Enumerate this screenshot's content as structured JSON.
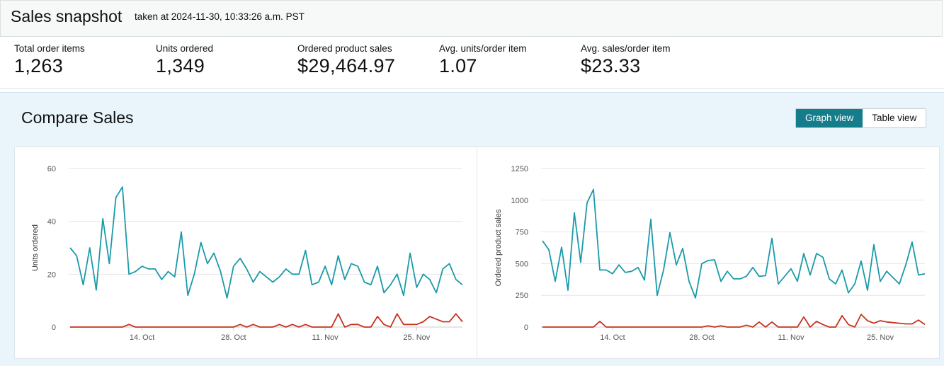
{
  "snapshot": {
    "title": "Sales snapshot",
    "timestamp": "taken at 2024-11-30, 10:33:26 a.m. PST"
  },
  "metrics": [
    {
      "label": "Total order items",
      "value": "1,263"
    },
    {
      "label": "Units ordered",
      "value": "1,349"
    },
    {
      "label": "Ordered product sales",
      "value": "$29,464.97"
    },
    {
      "label": "Avg. units/order item",
      "value": "1.07"
    },
    {
      "label": "Avg. sales/order item",
      "value": "$23.33"
    }
  ],
  "compare": {
    "title": "Compare Sales",
    "graph_view_label": "Graph view",
    "table_view_label": "Table view"
  },
  "colors": {
    "accent": "#147c8a",
    "series_current": "#1b9aaa",
    "series_compare": "#c8321e",
    "grid": "#e6e6e6"
  },
  "chart_data": [
    {
      "type": "line",
      "ylabel": "Units ordered",
      "ylim": [
        0,
        60
      ],
      "yticks": [
        "0",
        "20",
        "40",
        "60"
      ],
      "xticks": [
        {
          "label": "14. Oct",
          "index": 11
        },
        {
          "label": "28. Oct",
          "index": 25
        },
        {
          "label": "11. Nov",
          "index": 39
        },
        {
          "label": "25. Nov",
          "index": 53
        }
      ],
      "grid": true,
      "series": [
        {
          "values": [
            30,
            27,
            16,
            30,
            14,
            41,
            24,
            49,
            53,
            20,
            21,
            23,
            22,
            22,
            18,
            21,
            19,
            36,
            12,
            20,
            32,
            24,
            28,
            21,
            11,
            23,
            26,
            22,
            17,
            21,
            19,
            17,
            19,
            22,
            20,
            20,
            29,
            16,
            17,
            23,
            16,
            27,
            18,
            24,
            23,
            17,
            16,
            23,
            13,
            16,
            20,
            12,
            28,
            15,
            20,
            18,
            13,
            22,
            24,
            18,
            16
          ],
          "color": "#1b9aaa"
        },
        {
          "values": [
            0,
            0,
            0,
            0,
            0,
            0,
            0,
            0,
            0,
            1,
            0,
            0,
            0,
            0,
            0,
            0,
            0,
            0,
            0,
            0,
            0,
            0,
            0,
            0,
            0,
            0,
            1,
            0,
            1,
            0,
            0,
            0,
            1,
            0,
            1,
            0,
            1,
            0,
            0,
            0,
            0,
            5,
            0,
            1,
            1,
            0,
            0,
            4,
            1,
            0,
            5,
            1,
            1,
            1,
            2,
            4,
            3,
            2,
            2,
            5,
            2
          ],
          "color": "#c8321e"
        }
      ]
    },
    {
      "type": "line",
      "ylabel": "Ordered product sales",
      "ylim": [
        0,
        1250
      ],
      "yticks": [
        "0",
        "250",
        "500",
        "750",
        "1000",
        "1250"
      ],
      "xticks": [
        {
          "label": "14. Oct",
          "index": 11
        },
        {
          "label": "28. Oct",
          "index": 25
        },
        {
          "label": "11. Nov",
          "index": 39
        },
        {
          "label": "25. Nov",
          "index": 53
        }
      ],
      "grid": true,
      "series": [
        {
          "values": [
            680,
            610,
            360,
            630,
            290,
            900,
            510,
            980,
            1085,
            450,
            450,
            420,
            490,
            430,
            440,
            470,
            370,
            850,
            250,
            450,
            745,
            490,
            620,
            360,
            230,
            500,
            525,
            530,
            360,
            440,
            380,
            380,
            400,
            470,
            400,
            405,
            700,
            340,
            400,
            460,
            360,
            580,
            410,
            580,
            550,
            380,
            340,
            450,
            270,
            340,
            520,
            290,
            650,
            360,
            440,
            390,
            340,
            490,
            670,
            410,
            420
          ],
          "color": "#1b9aaa"
        },
        {
          "values": [
            0,
            0,
            0,
            0,
            0,
            0,
            0,
            0,
            0,
            45,
            0,
            0,
            0,
            0,
            0,
            0,
            0,
            0,
            0,
            0,
            0,
            0,
            0,
            0,
            0,
            0,
            10,
            0,
            10,
            0,
            0,
            0,
            15,
            0,
            40,
            0,
            40,
            0,
            0,
            0,
            0,
            80,
            0,
            45,
            20,
            0,
            0,
            90,
            20,
            0,
            100,
            50,
            30,
            50,
            40,
            35,
            30,
            25,
            25,
            55,
            20
          ],
          "color": "#c8321e"
        }
      ]
    }
  ]
}
